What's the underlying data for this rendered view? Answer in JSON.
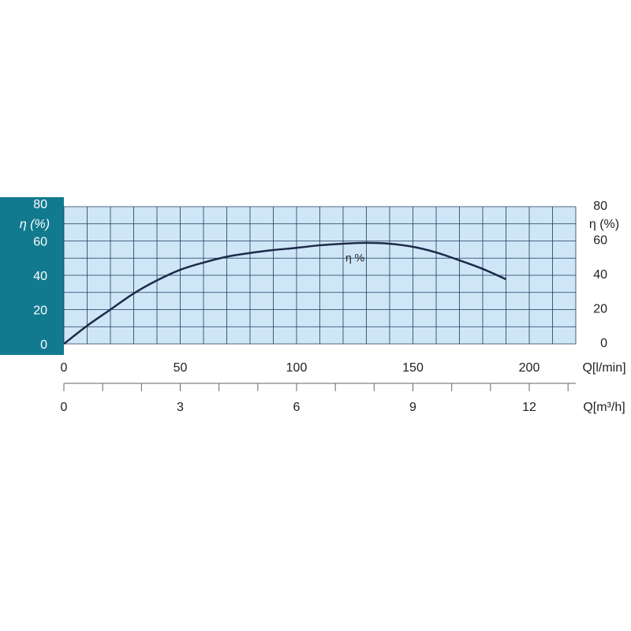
{
  "chart_data": {
    "type": "line",
    "x": [
      0,
      10,
      20,
      30,
      40,
      50,
      60,
      70,
      80,
      90,
      100,
      110,
      120,
      130,
      140,
      150,
      160,
      170,
      180,
      190
    ],
    "series": [
      {
        "name": "η %",
        "color": "#1c2b4a",
        "values": [
          0,
          10.6,
          20,
          29.4,
          37,
          43.2,
          47.4,
          50.8,
          53,
          54.7,
          56,
          57.5,
          58.4,
          58.9,
          58.4,
          56.6,
          53.3,
          48.7,
          43.7,
          37.7
        ]
      }
    ],
    "xlim": [
      0,
      220
    ],
    "xticks": [
      0,
      50,
      100,
      150,
      200
    ],
    "xlabel": "Q[l/min]",
    "xgrid": [
      0,
      10,
      20,
      30,
      40,
      50,
      60,
      70,
      80,
      90,
      100,
      110,
      120,
      130,
      140,
      150,
      160,
      170,
      180,
      190,
      200,
      210,
      220
    ],
    "x2lim": [
      0,
      13.2
    ],
    "x2ticks": [
      0,
      3,
      6,
      9,
      12
    ],
    "x2minor_ticks": [
      1,
      2,
      4,
      5,
      7,
      8,
      10,
      11,
      13
    ],
    "x2label": "Q[m³/h]",
    "ylim": [
      0,
      80
    ],
    "yticks": [
      0,
      20,
      40,
      60,
      80
    ],
    "ylabel": "η (%)",
    "ygrid": [
      0,
      10,
      20,
      30,
      40,
      50,
      60,
      70,
      80
    ],
    "y2lim": [
      0,
      80
    ],
    "y2ticks": [
      0,
      20,
      40,
      60,
      80
    ],
    "y2label": "η (%)",
    "grid": true,
    "grid_color": "#1c3a5c",
    "plot_background": "#cfe6f7",
    "left_panel_color": "#127a8f",
    "annotation": "η %",
    "annotation_color": "#2a9fd0"
  }
}
